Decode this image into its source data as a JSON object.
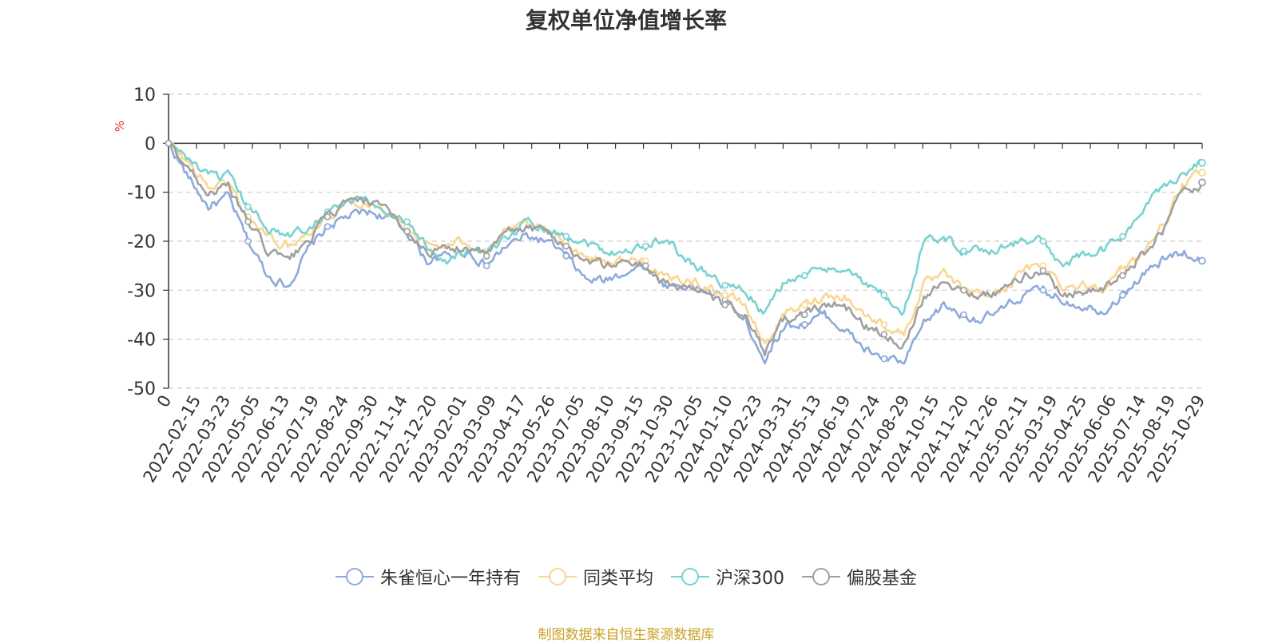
{
  "chart_data": {
    "type": "line",
    "title": "复权单位净值增长率",
    "ylabel": "%",
    "xlabel": "",
    "ylim": [
      -50,
      10
    ],
    "yticks": [
      10,
      0,
      -10,
      -20,
      -30,
      -40,
      -50
    ],
    "grid": true,
    "legend_position": "bottom",
    "x_ticks": [
      "0",
      "2022-02-15",
      "2022-03-23",
      "2022-05-05",
      "2022-06-13",
      "2022-07-19",
      "2022-08-24",
      "2022-09-30",
      "2022-11-14",
      "2022-12-20",
      "2023-02-01",
      "2023-03-09",
      "2023-04-17",
      "2023-05-26",
      "2023-07-05",
      "2023-08-10",
      "2023-09-15",
      "2023-10-30",
      "2023-12-05",
      "2024-01-10",
      "2024-02-23",
      "2024-03-31",
      "2024-05-13",
      "2024-06-19",
      "2024-07-24",
      "2024-08-29",
      "2024-10-15",
      "2024-11-20",
      "2024-12-26",
      "2025-02-11",
      "2025-03-19",
      "2025-04-25",
      "2025-06-06",
      "2025-07-14",
      "2025-08-19",
      "2025-10-29"
    ],
    "series": [
      {
        "name": "朱雀恒心一年持有",
        "color": "#8eaadb",
        "values": [
          0,
          -7,
          -13,
          -11,
          -20,
          -27,
          -29,
          -22,
          -17,
          -15,
          -14,
          -15,
          -18,
          -24,
          -23,
          -22,
          -25,
          -21,
          -19,
          -20,
          -23,
          -28,
          -28,
          -26,
          -25,
          -29,
          -29,
          -30,
          -32,
          -36,
          -44,
          -37,
          -37,
          -35,
          -38,
          -42,
          -44,
          -45,
          -37,
          -33,
          -35,
          -36,
          -34,
          -31,
          -30,
          -32,
          -33,
          -34,
          -31,
          -27,
          -24,
          -22,
          -24
        ]
      },
      {
        "name": "同类平均",
        "color": "#fad790",
        "values": [
          0,
          -4,
          -9,
          -8,
          -15,
          -19,
          -21,
          -18,
          -15,
          -12,
          -12,
          -14,
          -17,
          -21,
          -21,
          -20,
          -22,
          -18,
          -17,
          -18,
          -20,
          -23,
          -24,
          -24,
          -24,
          -28,
          -28,
          -29,
          -31,
          -33,
          -41,
          -35,
          -33,
          -31,
          -31,
          -35,
          -37,
          -39,
          -29,
          -27,
          -30,
          -31,
          -30,
          -26,
          -25,
          -29,
          -29,
          -29,
          -26,
          -22,
          -17,
          -9,
          -6
        ]
      },
      {
        "name": "沪深300",
        "color": "#79d2d2",
        "values": [
          0,
          -3,
          -7,
          -7,
          -13,
          -17,
          -19,
          -17,
          -14,
          -12,
          -12,
          -14,
          -16,
          -21,
          -24,
          -22,
          -23,
          -19,
          -16,
          -17,
          -19,
          -20,
          -22,
          -22,
          -21,
          -19,
          -24,
          -26,
          -29,
          -30,
          -35,
          -28,
          -27,
          -26,
          -25,
          -29,
          -31,
          -35,
          -20,
          -19,
          -22,
          -22,
          -21,
          -20,
          -20,
          -25,
          -23,
          -22,
          -19,
          -14,
          -9,
          -6,
          -4
        ]
      },
      {
        "name": "偏股基金",
        "color": "#a0a0a0",
        "values": [
          0,
          -5,
          -10,
          -9,
          -16,
          -22,
          -24,
          -20,
          -15,
          -12,
          -12,
          -14,
          -18,
          -22,
          -22,
          -21,
          -23,
          -18,
          -17,
          -18,
          -21,
          -24,
          -25,
          -24,
          -25,
          -29,
          -29,
          -31,
          -33,
          -35,
          -43,
          -36,
          -35,
          -33,
          -33,
          -37,
          -39,
          -41,
          -31,
          -28,
          -30,
          -31,
          -30,
          -27,
          -26,
          -31,
          -30,
          -30,
          -27,
          -23,
          -18,
          -10,
          -8
        ]
      }
    ]
  },
  "source_text": "制图数据来自恒生聚源数据库"
}
